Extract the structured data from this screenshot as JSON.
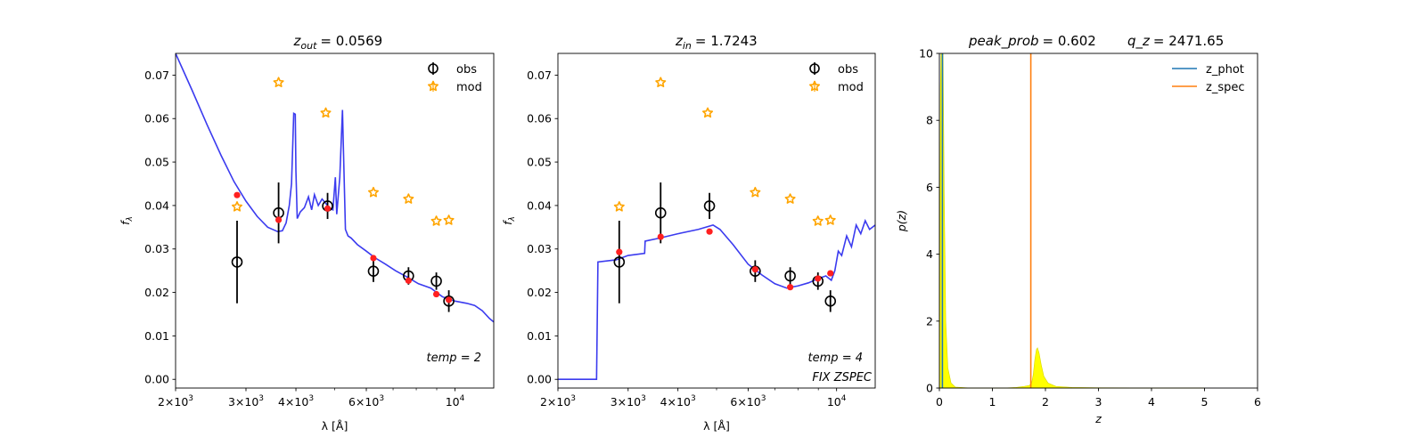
{
  "chart_data": [
    {
      "type": "scatter",
      "title_main": "z",
      "title_sub": "out",
      "title_value": "= 0.0569",
      "xlabel": "λ [Å]",
      "ylabel": "f",
      "ylabel_sub": "λ",
      "xscale": "log",
      "xlim": [
        2000,
        12500
      ],
      "ylim": [
        -0.002,
        0.075
      ],
      "x_ticks": [
        {
          "value": 2000,
          "base": "2×10",
          "exp": "3"
        },
        {
          "value": 3000,
          "base": "3×10",
          "exp": "3"
        },
        {
          "value": 4000,
          "base": "4×10",
          "exp": "3"
        },
        {
          "value": 6000,
          "base": "6×10",
          "exp": "3"
        },
        {
          "value": 10000,
          "base": "10",
          "exp": "4"
        }
      ],
      "y_ticks": [
        0.0,
        0.01,
        0.02,
        0.03,
        0.04,
        0.05,
        0.06,
        0.07
      ],
      "y_tick_labels": [
        "0.00",
        "0.01",
        "0.02",
        "0.03",
        "0.04",
        "0.05",
        "0.06",
        "0.07"
      ],
      "legend": {
        "position": "top-right",
        "entries": [
          "obs",
          "mod"
        ]
      },
      "annotations": [
        "temp = 2"
      ],
      "obs": [
        {
          "x": 2850,
          "y": 0.027,
          "err": 0.0095
        },
        {
          "x": 3620,
          "y": 0.0383,
          "err": 0.007
        },
        {
          "x": 4800,
          "y": 0.0399,
          "err": 0.003
        },
        {
          "x": 6250,
          "y": 0.0249,
          "err": 0.0025
        },
        {
          "x": 7650,
          "y": 0.0238,
          "err": 0.002
        },
        {
          "x": 8980,
          "y": 0.0226,
          "err": 0.002
        },
        {
          "x": 9650,
          "y": 0.018,
          "err": 0.0025
        }
      ],
      "mod": [
        {
          "x": 2850,
          "y": 0.0397
        },
        {
          "x": 3620,
          "y": 0.0683
        },
        {
          "x": 4750,
          "y": 0.0613
        },
        {
          "x": 6250,
          "y": 0.043
        },
        {
          "x": 7650,
          "y": 0.0415
        },
        {
          "x": 8980,
          "y": 0.0364
        },
        {
          "x": 9650,
          "y": 0.0366
        }
      ],
      "template_points": [
        {
          "x": 2850,
          "y": 0.0424
        },
        {
          "x": 3620,
          "y": 0.0367
        },
        {
          "x": 4800,
          "y": 0.0393
        },
        {
          "x": 6250,
          "y": 0.0279
        },
        {
          "x": 7650,
          "y": 0.0227
        },
        {
          "x": 8980,
          "y": 0.0196
        },
        {
          "x": 9650,
          "y": 0.0183
        }
      ],
      "sed_curve": [
        [
          2000,
          0.075
        ],
        [
          2200,
          0.0665
        ],
        [
          2400,
          0.0585
        ],
        [
          2600,
          0.0515
        ],
        [
          2800,
          0.0455
        ],
        [
          3000,
          0.041
        ],
        [
          3200,
          0.0375
        ],
        [
          3400,
          0.035
        ],
        [
          3600,
          0.034
        ],
        [
          3700,
          0.0342
        ],
        [
          3780,
          0.036
        ],
        [
          3850,
          0.04
        ],
        [
          3900,
          0.045
        ],
        [
          3950,
          0.0612
        ],
        [
          3985,
          0.061
        ],
        [
          4000,
          0.048
        ],
        [
          4030,
          0.037
        ],
        [
          4100,
          0.0385
        ],
        [
          4200,
          0.0395
        ],
        [
          4300,
          0.042
        ],
        [
          4380,
          0.039
        ],
        [
          4450,
          0.0425
        ],
        [
          4550,
          0.04
        ],
        [
          4650,
          0.0415
        ],
        [
          4750,
          0.0405
        ],
        [
          4850,
          0.0395
        ],
        [
          4950,
          0.039
        ],
        [
          5020,
          0.0465
        ],
        [
          5060,
          0.038
        ],
        [
          5150,
          0.0465
        ],
        [
          5230,
          0.062
        ],
        [
          5270,
          0.0495
        ],
        [
          5320,
          0.0345
        ],
        [
          5400,
          0.033
        ],
        [
          5500,
          0.0325
        ],
        [
          5700,
          0.031
        ],
        [
          6000,
          0.0295
        ],
        [
          6300,
          0.028
        ],
        [
          6700,
          0.0265
        ],
        [
          7100,
          0.025
        ],
        [
          7600,
          0.0235
        ],
        [
          8100,
          0.022
        ],
        [
          8700,
          0.021
        ],
        [
          9300,
          0.019
        ],
        [
          10000,
          0.018
        ],
        [
          10700,
          0.0175
        ],
        [
          11200,
          0.017
        ],
        [
          11700,
          0.0158
        ],
        [
          12200,
          0.014
        ],
        [
          12500,
          0.0132
        ]
      ]
    },
    {
      "type": "scatter",
      "title_main": "z",
      "title_sub": "in",
      "title_value": "= 1.7243",
      "xlabel": "λ [Å]",
      "ylabel": "f",
      "ylabel_sub": "λ",
      "xscale": "log",
      "xlim": [
        2000,
        12500
      ],
      "ylim": [
        -0.002,
        0.075
      ],
      "x_ticks": [
        {
          "value": 2000,
          "base": "2×10",
          "exp": "3"
        },
        {
          "value": 3000,
          "base": "3×10",
          "exp": "3"
        },
        {
          "value": 4000,
          "base": "4×10",
          "exp": "3"
        },
        {
          "value": 6000,
          "base": "6×10",
          "exp": "3"
        },
        {
          "value": 10000,
          "base": "10",
          "exp": "4"
        }
      ],
      "y_ticks": [
        0.0,
        0.01,
        0.02,
        0.03,
        0.04,
        0.05,
        0.06,
        0.07
      ],
      "y_tick_labels": [
        "0.00",
        "0.01",
        "0.02",
        "0.03",
        "0.04",
        "0.05",
        "0.06",
        "0.07"
      ],
      "legend": {
        "position": "top-right",
        "entries": [
          "obs",
          "mod"
        ]
      },
      "annotations": [
        "temp = 4",
        "FIX ZSPEC"
      ],
      "obs": [
        {
          "x": 2850,
          "y": 0.027,
          "err": 0.0095
        },
        {
          "x": 3620,
          "y": 0.0383,
          "err": 0.007
        },
        {
          "x": 4800,
          "y": 0.0399,
          "err": 0.003
        },
        {
          "x": 6250,
          "y": 0.0249,
          "err": 0.0025
        },
        {
          "x": 7650,
          "y": 0.0238,
          "err": 0.002
        },
        {
          "x": 8980,
          "y": 0.0226,
          "err": 0.002
        },
        {
          "x": 9650,
          "y": 0.018,
          "err": 0.0025
        }
      ],
      "mod": [
        {
          "x": 2850,
          "y": 0.0397
        },
        {
          "x": 3620,
          "y": 0.0683
        },
        {
          "x": 4750,
          "y": 0.0613
        },
        {
          "x": 6250,
          "y": 0.043
        },
        {
          "x": 7650,
          "y": 0.0415
        },
        {
          "x": 8980,
          "y": 0.0364
        },
        {
          "x": 9650,
          "y": 0.0366
        }
      ],
      "template_points": [
        {
          "x": 2850,
          "y": 0.0293
        },
        {
          "x": 3620,
          "y": 0.0328
        },
        {
          "x": 4800,
          "y": 0.034
        },
        {
          "x": 6250,
          "y": 0.0253
        },
        {
          "x": 7650,
          "y": 0.0212
        },
        {
          "x": 8980,
          "y": 0.0232
        },
        {
          "x": 9650,
          "y": 0.0244
        }
      ],
      "sed_curve": [
        [
          2000,
          0.0
        ],
        [
          2500,
          0.0
        ],
        [
          2520,
          0.027
        ],
        [
          2800,
          0.0275
        ],
        [
          3000,
          0.0285
        ],
        [
          3300,
          0.029
        ],
        [
          3310,
          0.0318
        ],
        [
          3600,
          0.0325
        ],
        [
          4000,
          0.0335
        ],
        [
          4500,
          0.0345
        ],
        [
          4900,
          0.0355
        ],
        [
          5100,
          0.0345
        ],
        [
          5500,
          0.031
        ],
        [
          6000,
          0.0265
        ],
        [
          6500,
          0.024
        ],
        [
          7000,
          0.022
        ],
        [
          7500,
          0.021
        ],
        [
          8000,
          0.0215
        ],
        [
          8500,
          0.0222
        ],
        [
          9000,
          0.0232
        ],
        [
          9400,
          0.0238
        ],
        [
          9700,
          0.0228
        ],
        [
          9900,
          0.025
        ],
        [
          10100,
          0.0295
        ],
        [
          10300,
          0.0285
        ],
        [
          10600,
          0.033
        ],
        [
          10900,
          0.0305
        ],
        [
          11200,
          0.0355
        ],
        [
          11500,
          0.0335
        ],
        [
          11800,
          0.0365
        ],
        [
          12100,
          0.0345
        ],
        [
          12500,
          0.0355
        ]
      ]
    },
    {
      "type": "area",
      "title_left": "peak_prob",
      "title_left_value": "= 0.602",
      "title_right": "q_z",
      "title_right_value": "= 2471.65",
      "xlabel": "z",
      "ylabel": "p(z)",
      "xlim": [
        0,
        6
      ],
      "ylim": [
        0,
        10
      ],
      "x_ticks": [
        0,
        1,
        2,
        3,
        4,
        5,
        6
      ],
      "y_ticks": [
        0,
        2,
        4,
        6,
        8,
        10
      ],
      "legend": {
        "position": "top-right",
        "entries": [
          "z_phot",
          "z_spec"
        ]
      },
      "series": [
        {
          "name": "z_phot",
          "x": 0.0569,
          "color": "#1f77b4"
        },
        {
          "name": "z_spec",
          "x": 1.7243,
          "color": "#ff7f0e"
        }
      ],
      "pdf": [
        [
          0.0,
          0.0
        ],
        [
          0.01,
          4.0
        ],
        [
          0.02,
          9.0
        ],
        [
          0.03,
          10.0
        ],
        [
          0.05,
          10.0
        ],
        [
          0.07,
          10.0
        ],
        [
          0.09,
          6.0
        ],
        [
          0.12,
          2.0
        ],
        [
          0.16,
          0.6
        ],
        [
          0.22,
          0.15
        ],
        [
          0.3,
          0.03
        ],
        [
          0.6,
          0.0
        ],
        [
          1.2,
          0.0
        ],
        [
          1.45,
          0.02
        ],
        [
          1.6,
          0.05
        ],
        [
          1.7,
          0.08
        ],
        [
          1.74,
          0.15
        ],
        [
          1.77,
          0.4
        ],
        [
          1.8,
          0.85
        ],
        [
          1.83,
          1.15
        ],
        [
          1.85,
          1.2
        ],
        [
          1.88,
          1.05
        ],
        [
          1.92,
          0.7
        ],
        [
          1.97,
          0.35
        ],
        [
          2.05,
          0.15
        ],
        [
          2.2,
          0.05
        ],
        [
          2.5,
          0.02
        ],
        [
          3.0,
          0.01
        ],
        [
          4.0,
          0.005
        ],
        [
          5.0,
          0.0
        ]
      ],
      "pdf_color": "#ffff00"
    }
  ]
}
